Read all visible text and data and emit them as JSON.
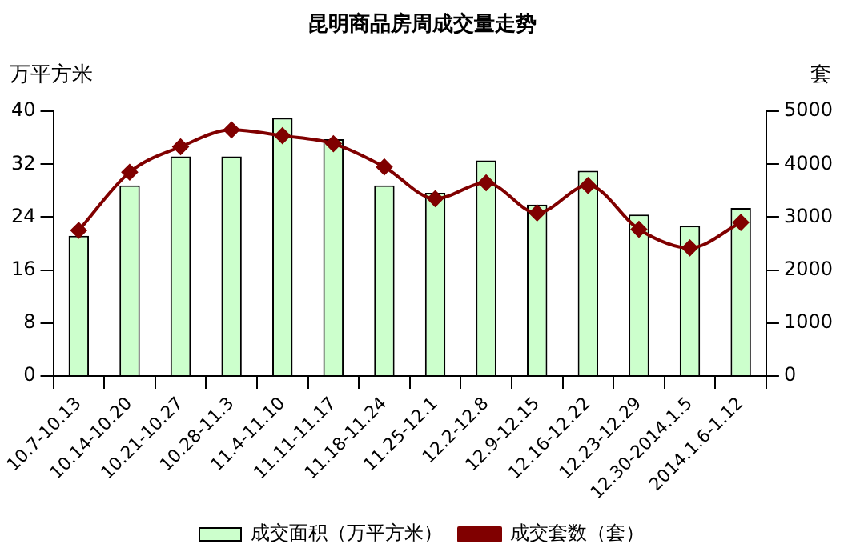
{
  "chart_data": {
    "type": "bar",
    "title": "昆明商品房周成交量走势",
    "ylabel": "万平方米",
    "y2label": "套",
    "categories": [
      "10.7-10.13",
      "10.14-10.20",
      "10.21-10.27",
      "10.28-11.3",
      "11.4-11.10",
      "11.11-11.17",
      "11.18-11.24",
      "11.25-12.1",
      "12.2-12.8",
      "12.9-12.15",
      "12.16-12.22",
      "12.23-12.29",
      "12.30-2014.1.5",
      "2014.1.6-1.12"
    ],
    "series": [
      {
        "name": "成交面积（万平方米）",
        "color": "#ccffcc",
        "values": [
          21.2,
          28.8,
          33.2,
          33.2,
          39,
          35.8,
          28.8,
          27.7,
          32.6,
          25.9,
          31,
          24.4,
          22.7,
          25.4
        ]
      },
      {
        "name": "成交套数（套）",
        "type": "line",
        "axis": "y2",
        "color": "#800000",
        "marker": "diamond",
        "values": [
          2750,
          3850,
          4330,
          4650,
          4540,
          4390,
          3950,
          3350,
          3650,
          3080,
          3600,
          2770,
          2420,
          2900
        ]
      }
    ],
    "ylim": [
      0,
      40
    ],
    "yticks": [
      0,
      8,
      16,
      24,
      32,
      40
    ],
    "y2lim": [
      0,
      5000
    ],
    "y2ticks": [
      0,
      1000,
      2000,
      3000,
      4000,
      5000
    ],
    "grid": false,
    "legend": "bottom"
  }
}
